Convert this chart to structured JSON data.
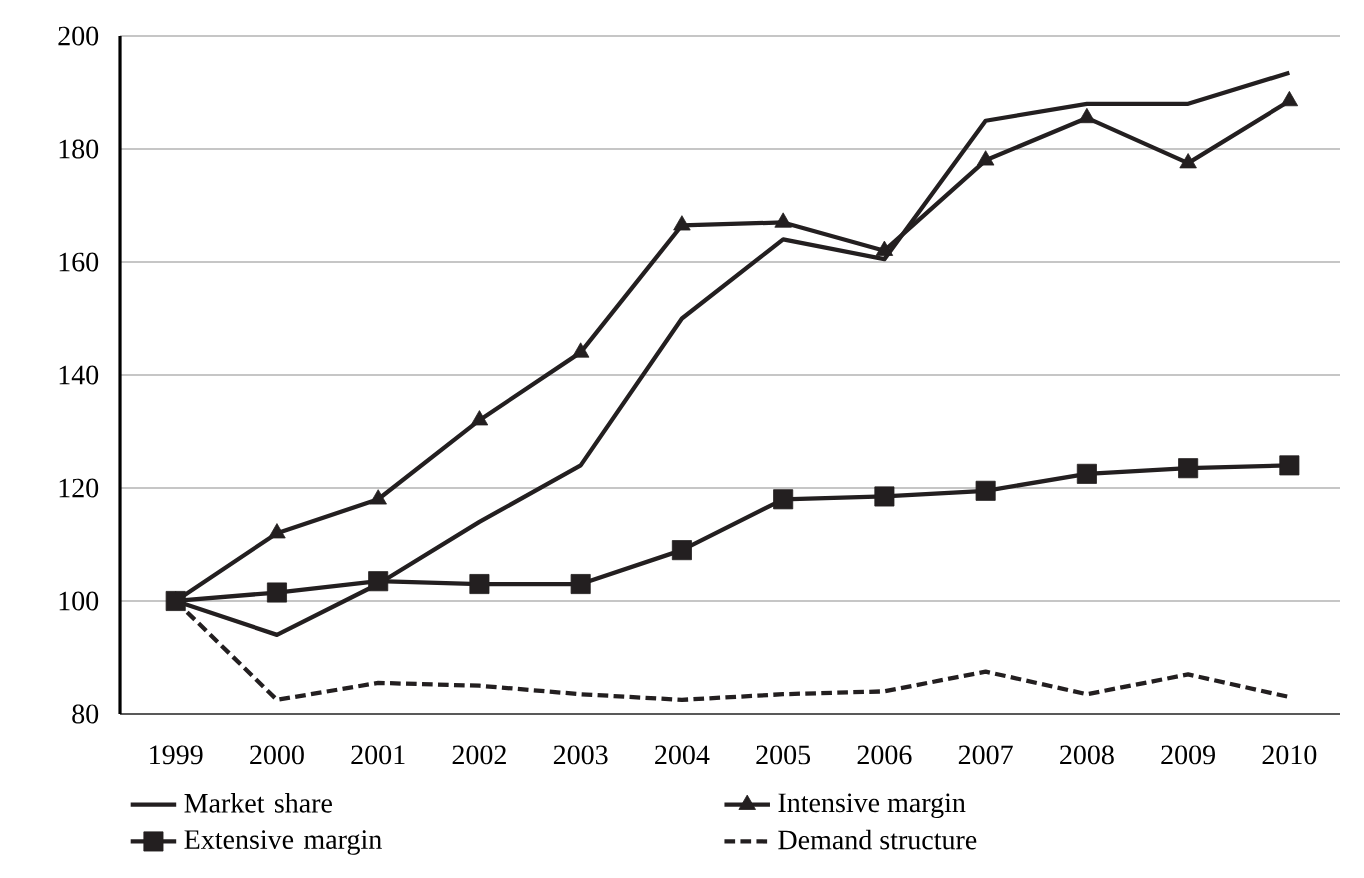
{
  "chart_data": {
    "type": "line",
    "categories": [
      "1999",
      "2000",
      "2001",
      "2002",
      "2003",
      "2004",
      "2005",
      "2006",
      "2007",
      "2008",
      "2009",
      "2010"
    ],
    "series": [
      {
        "name": "Market share",
        "color": "#231f20",
        "marker": "none",
        "line_style": "solid",
        "values": [
          100,
          94,
          103,
          114,
          124,
          150,
          164,
          160.5,
          185,
          188,
          188,
          193.5
        ]
      },
      {
        "name": "Intensive margin",
        "color": "#231f20",
        "marker": "triangle",
        "line_style": "solid",
        "values": [
          100,
          112,
          118,
          132,
          144,
          166.5,
          167,
          162,
          178,
          185.5,
          177.5,
          188.5
        ]
      },
      {
        "name": "Extensive margin",
        "color": "#231f20",
        "marker": "square",
        "line_style": "solid",
        "values": [
          100,
          101.5,
          103.5,
          103,
          103,
          109,
          118,
          118.5,
          119.5,
          122.5,
          123.5,
          124
        ]
      },
      {
        "name": "Demand structure",
        "color": "#231f20",
        "marker": "none",
        "line_style": "dashed",
        "values": [
          100,
          82.5,
          85.5,
          85,
          83.5,
          82.5,
          83.5,
          84,
          87.5,
          83.5,
          87,
          83
        ]
      }
    ],
    "ylim": [
      80,
      200
    ],
    "yticks": [
      80,
      100,
      120,
      140,
      160,
      180,
      200
    ],
    "grid": "y",
    "legend": "bottom"
  }
}
